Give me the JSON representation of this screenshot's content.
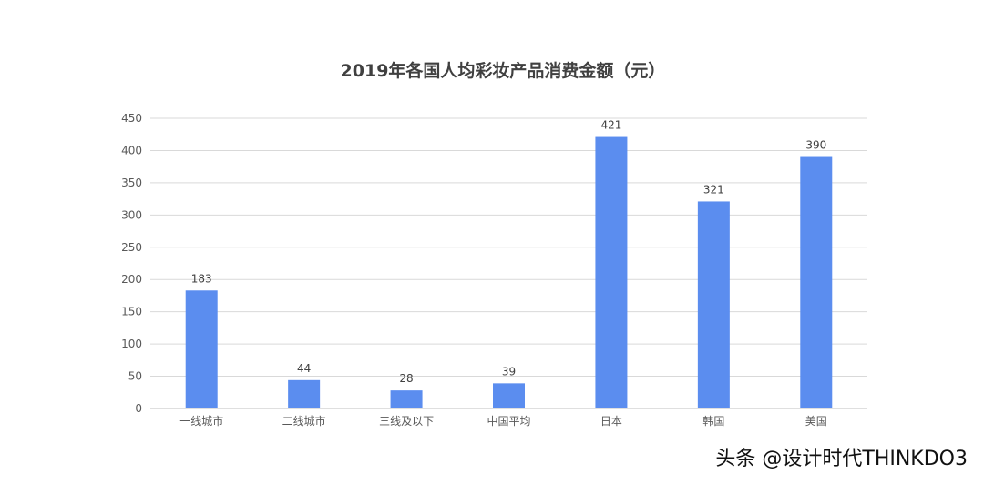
{
  "chart_data": {
    "type": "bar",
    "title": "2019年各国人均彩妆产品消费金额（元）",
    "categories": [
      "一线城市",
      "二线城市",
      "三线及以下",
      "中国平均",
      "日本",
      "韩国",
      "美国"
    ],
    "values": [
      183,
      44,
      28,
      39,
      421,
      321,
      390
    ],
    "data_labels": [
      "183",
      "44",
      "28",
      "39",
      "421",
      "321",
      "390"
    ],
    "xlabel": "",
    "ylabel": "",
    "ylim": [
      0,
      450
    ],
    "yticks": [
      0,
      50,
      100,
      150,
      200,
      250,
      300,
      350,
      400,
      450
    ],
    "grid": true,
    "legend": "none",
    "colors": {
      "bar": "#5b8def",
      "grid": "#d9d9d9",
      "axis": "#bfbfbf",
      "text": "#595959",
      "title": "#404040"
    }
  },
  "watermark": "头条 @设计时代THINKDO3"
}
